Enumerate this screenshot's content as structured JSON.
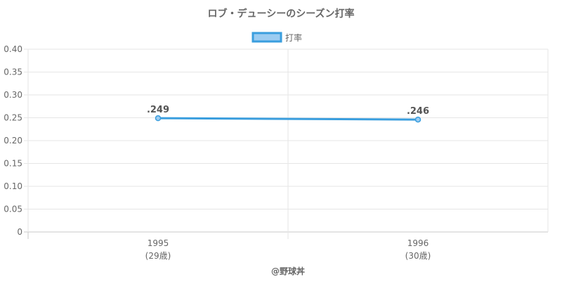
{
  "chart_data": {
    "type": "line",
    "title": "ロブ・デューシーのシーズン打率",
    "categories": [
      "1995",
      "1996"
    ],
    "sublabels": [
      "(29歳)",
      "(30歳)"
    ],
    "series": [
      {
        "name": "打率",
        "values": [
          0.249,
          0.246
        ],
        "labels": [
          ".249",
          ".246"
        ],
        "color": "#3a9ede",
        "fill": "#9cccf1"
      }
    ],
    "ylim": [
      0,
      0.4
    ],
    "yticks": [
      "0",
      "0.05",
      "0.10",
      "0.15",
      "0.20",
      "0.25",
      "0.30",
      "0.35",
      "0.40"
    ],
    "grid": true,
    "legend": "top-center",
    "xlabel": "",
    "ylabel": ""
  },
  "footer": {
    "credit": "@野球丼"
  }
}
